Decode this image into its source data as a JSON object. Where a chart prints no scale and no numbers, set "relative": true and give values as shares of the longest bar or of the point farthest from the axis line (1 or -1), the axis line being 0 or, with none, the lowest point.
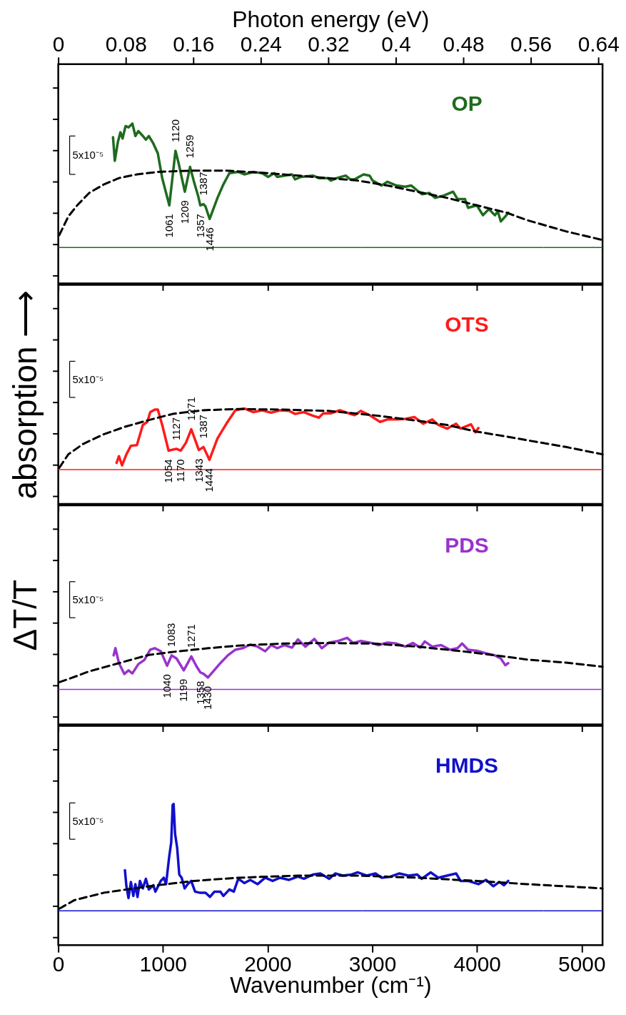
{
  "chart_data": [
    {
      "type": "line",
      "relative": true,
      "xlim": [
        0,
        5200
      ],
      "xticks": [
        0,
        1000,
        2000,
        3000,
        4000,
        5000
      ],
      "x2lim": [
        0,
        0.645
      ],
      "x2ticks": [
        0,
        0.08,
        0.16,
        0.24,
        0.32,
        0.4,
        0.48,
        0.56,
        0.64
      ],
      "x2label": "Photon energy (eV)",
      "tick_labels": false,
      "grid": false,
      "marker": "none",
      "series": [
        {
          "name": "OP",
          "color": "#1e6b1e",
          "x": [
            523,
            540,
            569,
            594,
            614,
            643,
            671,
            708,
            737,
            765,
            808,
            837,
            865,
            908,
            951,
            993,
            1061,
            1120,
            1150,
            1209,
            1259,
            1300,
            1335,
            1357,
            1387,
            1407,
            1446,
            1521,
            1578,
            1635,
            1720,
            1777,
            1863,
            1948,
            2005,
            2062,
            2091,
            2233,
            2262,
            2319,
            2433,
            2490,
            2575,
            2604,
            2661,
            2746,
            2789,
            2832,
            2917,
            2974,
            3003,
            3088,
            3145,
            3231,
            3316,
            3373,
            3430,
            3473,
            3544,
            3601,
            3687,
            3772,
            3815,
            3886,
            3915,
            3999,
            4057,
            4114,
            4171,
            4200,
            4228,
            4271,
            4299
          ],
          "values": [
            0.89,
            0.7,
            0.85,
            0.93,
            0.88,
            0.98,
            0.97,
            1.0,
            0.9,
            0.94,
            0.9,
            0.87,
            0.9,
            0.84,
            0.76,
            0.56,
            0.34,
            0.78,
            0.68,
            0.45,
            0.65,
            0.52,
            0.42,
            0.34,
            0.35,
            0.33,
            0.23,
            0.4,
            0.51,
            0.6,
            0.61,
            0.59,
            0.61,
            0.6,
            0.57,
            0.6,
            0.57,
            0.59,
            0.55,
            0.57,
            0.58,
            0.56,
            0.56,
            0.54,
            0.56,
            0.58,
            0.55,
            0.55,
            0.59,
            0.58,
            0.54,
            0.5,
            0.53,
            0.5,
            0.49,
            0.5,
            0.46,
            0.43,
            0.44,
            0.4,
            0.42,
            0.45,
            0.39,
            0.39,
            0.32,
            0.34,
            0.26,
            0.31,
            0.26,
            0.29,
            0.21,
            0.25,
            0.28
          ]
        },
        {
          "color": "#000000",
          "line_style": "dashed",
          "x": [
            10,
            96,
            181,
            295,
            438,
            580,
            751,
            951,
            1264,
            1606,
            2005,
            2433,
            2860,
            3145,
            3430,
            3715,
            3999,
            4285,
            4479,
            4850,
            5200
          ],
          "values": [
            0.1,
            0.25,
            0.34,
            0.44,
            0.51,
            0.56,
            0.59,
            0.61,
            0.62,
            0.62,
            0.6,
            0.57,
            0.54,
            0.5,
            0.45,
            0.4,
            0.34,
            0.28,
            0.22,
            0.13,
            0.06
          ]
        }
      ],
      "ref_lines": [
        {
          "axis": "y",
          "value": 0,
          "color": "#1e6b1e"
        }
      ],
      "annotations": [
        "5x10⁻⁵",
        {
          "text": "1120",
          "x": 1120,
          "y": 0.78
        },
        {
          "text": "1259",
          "x": 1259,
          "y": 0.65
        },
        {
          "text": "1387",
          "x": 1387,
          "y": 0.35
        },
        {
          "text": "1061",
          "x": 1061,
          "y": 0.34
        },
        {
          "text": "1209",
          "x": 1209,
          "y": 0.45
        },
        {
          "text": "1357",
          "x": 1357,
          "y": 0.34
        },
        {
          "text": "1446",
          "x": 1446,
          "y": 0.23
        }
      ]
    },
    {
      "type": "line",
      "relative": true,
      "xlim": [
        0,
        5200
      ],
      "xticks": [
        0,
        1000,
        2000,
        3000,
        4000,
        5000
      ],
      "tick_labels": false,
      "ylabel": "absorption ⟶",
      "grid": false,
      "marker": "none",
      "series": [
        {
          "name": "OTS",
          "color": "#ff1a1a",
          "x": [
            557,
            580,
            609,
            651,
            694,
            751,
            808,
            851,
            879,
            922,
            951,
            993,
            1054,
            1127,
            1170,
            1220,
            1271,
            1343,
            1387,
            1444,
            1521,
            1606,
            1692,
            1777,
            1863,
            1948,
            2034,
            2119,
            2205,
            2262,
            2347,
            2433,
            2490,
            2532,
            2604,
            2689,
            2775,
            2832,
            2889,
            2974,
            3074,
            3145,
            3231,
            3316,
            3402,
            3487,
            3573,
            3630,
            3715,
            3801,
            3843,
            3943,
            3986,
            4014
          ],
          "values": [
            0.11,
            0.22,
            0.07,
            0.25,
            0.39,
            0.4,
            0.73,
            0.78,
            0.94,
            0.98,
            0.98,
            0.73,
            0.31,
            0.34,
            0.31,
            0.44,
            0.66,
            0.32,
            0.37,
            0.16,
            0.51,
            0.75,
            0.97,
            1.0,
            0.94,
            0.97,
            0.93,
            0.97,
            0.96,
            0.91,
            0.94,
            0.88,
            0.85,
            0.92,
            0.92,
            0.97,
            0.92,
            0.89,
            0.96,
            0.89,
            0.78,
            0.82,
            0.82,
            0.83,
            0.86,
            0.75,
            0.82,
            0.73,
            0.67,
            0.75,
            0.67,
            0.74,
            0.61,
            0.68
          ]
        },
        {
          "color": "#000000",
          "line_style": "dashed",
          "x": [
            10,
            96,
            238,
            438,
            637,
            865,
            1093,
            1378,
            1720,
            2148,
            2575,
            3003,
            3430,
            3715,
            4000,
            4285,
            4479,
            4850,
            5200
          ],
          "values": [
            0.03,
            0.25,
            0.42,
            0.58,
            0.7,
            0.81,
            0.91,
            0.97,
            0.99,
            0.98,
            0.96,
            0.89,
            0.8,
            0.73,
            0.62,
            0.54,
            0.48,
            0.37,
            0.25
          ]
        }
      ],
      "ref_lines": [
        {
          "axis": "y",
          "value": 0,
          "color": "#ff1a1a"
        }
      ],
      "annotations": [
        "5x10⁻⁵",
        {
          "text": "1127",
          "x": 1127,
          "y": 0.34
        },
        {
          "text": "1271",
          "x": 1271,
          "y": 0.66
        },
        {
          "text": "1387",
          "x": 1387,
          "y": 0.37
        },
        {
          "text": "1054",
          "x": 1054,
          "y": 0.31
        },
        {
          "text": "1170",
          "x": 1170,
          "y": 0.31
        },
        {
          "text": "1343",
          "x": 1343,
          "y": 0.32
        },
        {
          "text": "1444",
          "x": 1444,
          "y": 0.16
        }
      ]
    },
    {
      "type": "line",
      "relative": true,
      "xlim": [
        0,
        5200
      ],
      "xticks": [
        0,
        1000,
        2000,
        3000,
        4000,
        5000
      ],
      "tick_labels": false,
      "ylabel": "ΔT/T",
      "grid": false,
      "marker": "none",
      "series": [
        {
          "name": "PDS",
          "color": "#9933cc",
          "x": [
            529,
            546,
            580,
            631,
            671,
            708,
            765,
            822,
            879,
            922,
            979,
            1040,
            1083,
            1130,
            1199,
            1271,
            1320,
            1358,
            1390,
            1430,
            1549,
            1620,
            1692,
            1763,
            1834,
            1905,
            1977,
            2034,
            2091,
            2162,
            2233,
            2290,
            2361,
            2447,
            2518,
            2589,
            2675,
            2760,
            2817,
            2889,
            2974,
            3060,
            3145,
            3231,
            3316,
            3387,
            3459,
            3501,
            3573,
            3658,
            3744,
            3815,
            3858,
            3915,
            4000,
            4086,
            4171,
            4228,
            4271,
            4299
          ],
          "values": [
            0.66,
            0.8,
            0.51,
            0.3,
            0.37,
            0.31,
            0.49,
            0.57,
            0.77,
            0.8,
            0.74,
            0.46,
            0.66,
            0.6,
            0.37,
            0.64,
            0.45,
            0.33,
            0.3,
            0.23,
            0.51,
            0.66,
            0.77,
            0.8,
            0.87,
            0.83,
            0.74,
            0.86,
            0.8,
            0.86,
            0.81,
            0.97,
            0.83,
            0.98,
            0.8,
            0.91,
            0.94,
            1.0,
            0.9,
            0.94,
            0.91,
            0.86,
            0.91,
            0.89,
            0.83,
            0.9,
            0.81,
            0.93,
            0.83,
            0.86,
            0.77,
            0.8,
            0.89,
            0.77,
            0.75,
            0.7,
            0.66,
            0.6,
            0.47,
            0.51
          ]
        },
        {
          "color": "#000000",
          "line_style": "dashed",
          "x": [
            10,
            96,
            295,
            580,
            865,
            1150,
            1435,
            1720,
            2148,
            2575,
            3003,
            3430,
            3858,
            4143,
            4479,
            4850,
            5200
          ],
          "values": [
            0.14,
            0.2,
            0.35,
            0.51,
            0.67,
            0.74,
            0.8,
            0.85,
            0.89,
            0.9,
            0.89,
            0.83,
            0.74,
            0.67,
            0.58,
            0.52,
            0.44
          ]
        }
      ],
      "ref_lines": [
        {
          "axis": "y",
          "value": 0,
          "color": "#9933cc"
        }
      ],
      "annotations": [
        "5x10⁻⁵",
        {
          "text": "1083",
          "x": 1083,
          "y": 0.66
        },
        {
          "text": "1271",
          "x": 1271,
          "y": 0.64
        },
        {
          "text": "1040",
          "x": 1040,
          "y": 0.46
        },
        {
          "text": "1199",
          "x": 1199,
          "y": 0.37
        },
        {
          "text": "1358",
          "x": 1358,
          "y": 0.33
        },
        {
          "text": "1430",
          "x": 1430,
          "y": 0.23
        }
      ]
    },
    {
      "type": "line",
      "relative": true,
      "xlim": [
        0,
        5200
      ],
      "xticks": [
        0,
        1000,
        2000,
        3000,
        4000,
        5000
      ],
      "xlabel": "Wavenumber (cm⁻¹)",
      "tick_labels": "x",
      "grid": false,
      "marker": "none",
      "series": [
        {
          "name": "HMDS",
          "color": "#1010cc",
          "x": [
            637,
            651,
            671,
            694,
            717,
            737,
            757,
            780,
            808,
            837,
            865,
            908,
            928,
            979,
            1008,
            1030,
            1059,
            1079,
            1093,
            1102,
            1116,
            1136,
            1156,
            1179,
            1207,
            1236,
            1270,
            1307,
            1350,
            1407,
            1449,
            1492,
            1549,
            1578,
            1635,
            1677,
            1720,
            1777,
            1834,
            1905,
            1977,
            2048,
            2119,
            2205,
            2290,
            2347,
            2433,
            2504,
            2589,
            2646,
            2718,
            2803,
            2860,
            2946,
            3031,
            3088,
            3174,
            3259,
            3345,
            3430,
            3473,
            3558,
            3630,
            3715,
            3801,
            3843,
            3915,
            4014,
            4086,
            4157,
            4214,
            4257,
            4299
          ],
          "values": [
            0.38,
            0.23,
            0.12,
            0.27,
            0.14,
            0.25,
            0.13,
            0.28,
            0.21,
            0.3,
            0.2,
            0.24,
            0.18,
            0.28,
            0.31,
            0.25,
            0.5,
            0.64,
            0.99,
            1.0,
            0.72,
            0.59,
            0.34,
            0.31,
            0.21,
            0.25,
            0.28,
            0.18,
            0.17,
            0.17,
            0.13,
            0.18,
            0.18,
            0.14,
            0.2,
            0.18,
            0.3,
            0.26,
            0.29,
            0.25,
            0.31,
            0.28,
            0.31,
            0.29,
            0.32,
            0.3,
            0.34,
            0.35,
            0.3,
            0.35,
            0.33,
            0.34,
            0.36,
            0.33,
            0.35,
            0.31,
            0.32,
            0.35,
            0.33,
            0.34,
            0.3,
            0.36,
            0.31,
            0.33,
            0.35,
            0.28,
            0.28,
            0.25,
            0.29,
            0.23,
            0.27,
            0.24,
            0.28
          ]
        },
        {
          "color": "#000000",
          "line_style": "dashed",
          "x": [
            10,
            153,
            438,
            865,
            1293,
            1720,
            2290,
            2860,
            3430,
            4000,
            4479,
            5200
          ],
          "values": [
            0.02,
            0.1,
            0.17,
            0.23,
            0.28,
            0.31,
            0.33,
            0.33,
            0.31,
            0.28,
            0.25,
            0.21
          ]
        }
      ],
      "ref_lines": [
        {
          "axis": "y",
          "value": 0,
          "color": "#1010cc"
        }
      ],
      "annotations": [
        "5x10⁻⁵"
      ]
    }
  ]
}
